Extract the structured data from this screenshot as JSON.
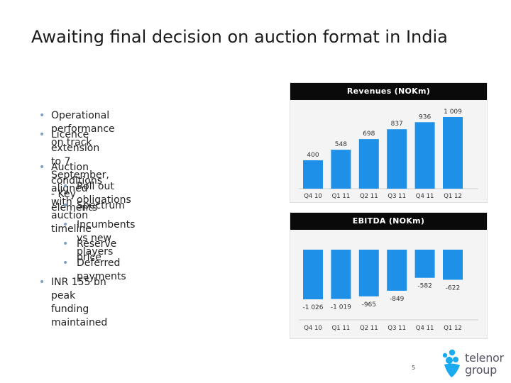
{
  "title": "Awaiting final decision on auction format in India",
  "bullets": [
    {
      "level": 1,
      "text": "Operational performance on track"
    },
    {
      "level": 1,
      "text": "Licence extension to 7 September, aligned with auction timeline",
      "line1": "Licence extension to 7 September,",
      "line2": "aligned with auction timeline"
    },
    {
      "level": 1,
      "text": "Auction conditions - Key elements"
    },
    {
      "level": 2,
      "text": "Roll out obligations"
    },
    {
      "level": 2,
      "text": "Spectrum"
    },
    {
      "level": 2,
      "text": "Incumbents vs new players"
    },
    {
      "level": 2,
      "text": "Reserve price"
    },
    {
      "level": 2,
      "text": "Deferred payments"
    },
    {
      "level": 1,
      "text": "INR 155 bn peak funding maintained"
    }
  ],
  "chart_data": [
    {
      "type": "bar",
      "title": "Revenues (NOKm)",
      "categories": [
        "Q4 10",
        "Q1 11",
        "Q2 11",
        "Q3 11",
        "Q4 11",
        "Q1 12"
      ],
      "values": [
        400,
        548,
        698,
        837,
        936,
        1009
      ],
      "value_labels": [
        "400",
        "548",
        "698",
        "837",
        "936",
        "1 009"
      ],
      "ylim": [
        0,
        1009
      ],
      "grid": false,
      "color": "#1e90e8"
    },
    {
      "type": "bar",
      "title": "EBITDA (NOKm)",
      "categories": [
        "Q4 10",
        "Q1 11",
        "Q2 11",
        "Q3 11",
        "Q4 11",
        "Q1 12"
      ],
      "values": [
        -1026,
        -1019,
        -965,
        -849,
        -582,
        -622
      ],
      "value_labels": [
        "-1 026",
        "-1 019",
        "-965",
        "-849",
        "-582",
        "-622"
      ],
      "ylim": [
        -1026,
        0
      ],
      "grid": false,
      "color": "#1e90e8"
    }
  ],
  "logo": {
    "line1": "telenor",
    "line2": "group"
  },
  "page_number": "5",
  "colors": {
    "bar": "#1e90e8",
    "bullet": "#7aa0c8",
    "chart_header": "#0a0a0a"
  }
}
